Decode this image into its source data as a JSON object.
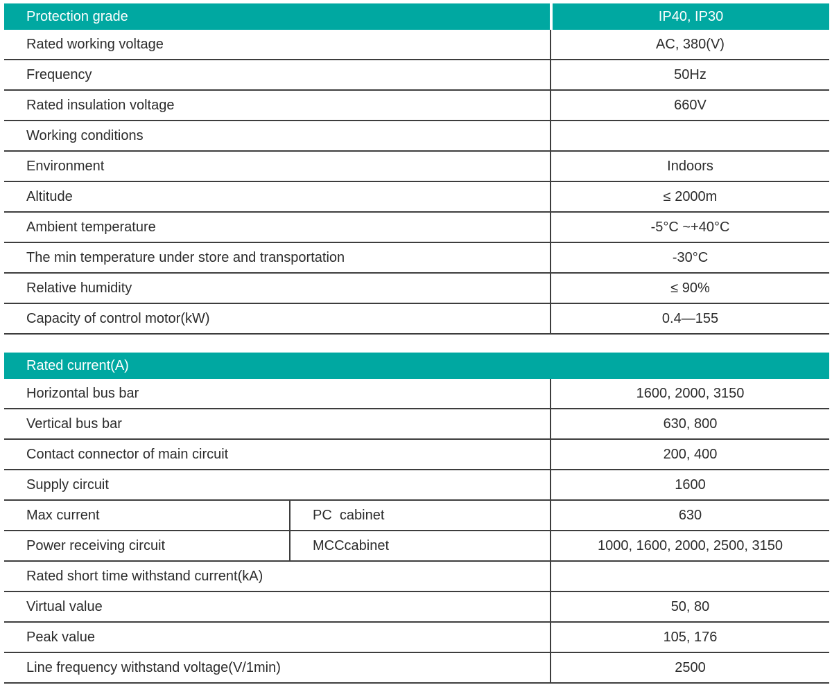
{
  "colors": {
    "accent": "#00a8a1",
    "border": "#3d3d3d",
    "header_text": "#ffffff",
    "body_text": "#2b2b2b"
  },
  "table1": {
    "header": {
      "label": "Protection grade",
      "value": "IP40、IP30"
    },
    "rows": [
      {
        "label": "Rated working voltage",
        "value": "AC、380(V)"
      },
      {
        "label": "Frequency",
        "value": "50Hz"
      },
      {
        "label": "Rated insulation voltage",
        "value": "660V"
      },
      {
        "label": "Working conditions",
        "value": ""
      },
      {
        "label": "Environment",
        "value": "Indoors"
      },
      {
        "label": "Altitude",
        "value": "≤ 2000m"
      },
      {
        "label": "Ambient temperature",
        "value": "-5°C ~+40°C"
      },
      {
        "label": "The min temperature under store and transportation",
        "value": "-30°C"
      },
      {
        "label": "Relative humidity",
        "value": "≤ 90%"
      },
      {
        "label": "Capacity of control motor(kW)",
        "value": "0.4—155"
      }
    ]
  },
  "table2": {
    "header": {
      "label": "Rated current(A)"
    },
    "rows": [
      {
        "label": "Horizontal bus bar",
        "value": "1600、2000、3150"
      },
      {
        "label": "Vertical bus bar",
        "value": "630、800"
      },
      {
        "label": "Contact connector of main circuit",
        "value": "200、400"
      },
      {
        "label": "Supply circuit",
        "value": "1600"
      },
      {
        "label": "Max current",
        "sub_label": "PC  cabinet",
        "value": "630"
      },
      {
        "label": "Power receiving circuit",
        "sub_label": "MCCcabinet",
        "value": "1000、1600、2000、2500、3150"
      },
      {
        "label": "Rated short time withstand current(kA)",
        "value": ""
      },
      {
        "label": "Virtual value",
        "value": "50、80"
      },
      {
        "label": "Peak value",
        "value": "105、176"
      },
      {
        "label": "Line frequency withstand voltage(V/1min)",
        "value": "2500"
      }
    ]
  }
}
